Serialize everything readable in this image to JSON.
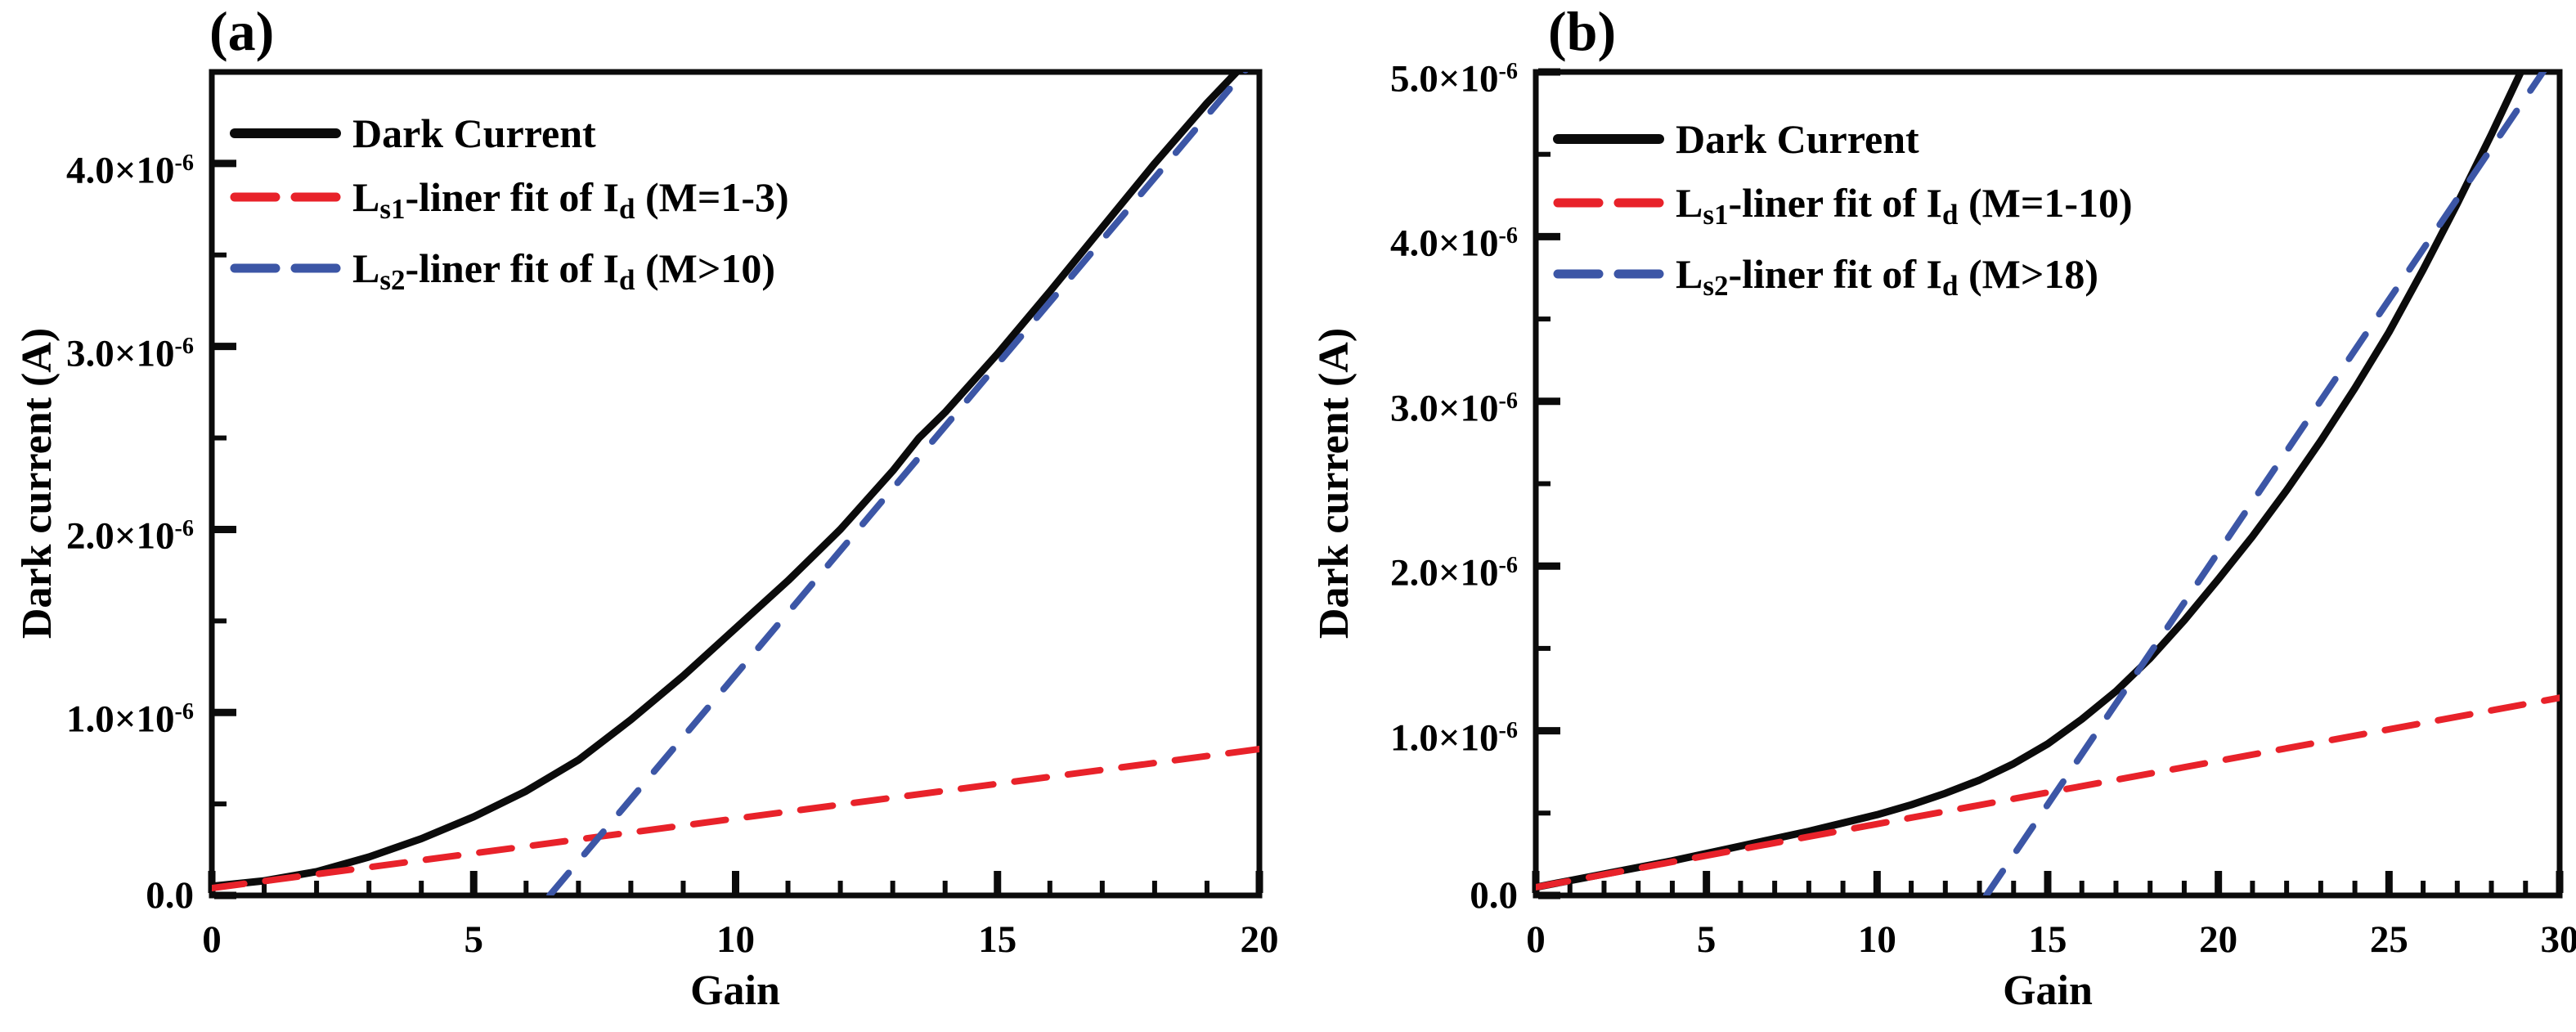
{
  "colors": {
    "black": "#0b0b0b",
    "red": "#e8222a",
    "blue": "#3c56a6"
  },
  "chart_data": [
    {
      "type": "line",
      "panel_label": "(a)",
      "xlabel": "Gain",
      "ylabel": "Dark current (A)",
      "grid": false,
      "legend_position": "top-left",
      "xlim": [
        0,
        20
      ],
      "ylim": [
        0,
        4.5
      ],
      "y_scale": 1e-06,
      "x_minor_step": 1,
      "y_minor_step": 0.5,
      "x_major_ticks": [
        0,
        5,
        10,
        15,
        20
      ],
      "x_tick_labels": [
        "0",
        "5",
        "10",
        "15",
        "20"
      ],
      "y_major_ticks": [
        {
          "v": 0,
          "base": "0.0",
          "exp": ""
        },
        {
          "v": 1,
          "base": "1.0×10",
          "exp": "-6"
        },
        {
          "v": 2,
          "base": "2.0×10",
          "exp": "-6"
        },
        {
          "v": 3,
          "base": "3.0×10",
          "exp": "-6"
        },
        {
          "v": 4,
          "base": "4.0×10",
          "exp": "-6"
        }
      ],
      "series": [
        {
          "name": "Dark Current",
          "color_key": "black",
          "style": "solid",
          "label_parts": [
            [
              "t",
              "Dark Current"
            ]
          ],
          "points": [
            [
              0,
              0.05
            ],
            [
              1,
              0.08
            ],
            [
              2,
              0.13
            ],
            [
              3,
              0.21
            ],
            [
              4,
              0.31
            ],
            [
              5,
              0.43
            ],
            [
              6,
              0.57
            ],
            [
              7,
              0.74
            ],
            [
              8,
              0.96
            ],
            [
              9,
              1.2
            ],
            [
              10,
              1.46
            ],
            [
              11,
              1.72
            ],
            [
              12,
              2.0
            ],
            [
              13,
              2.32
            ],
            [
              13.5,
              2.5
            ],
            [
              14,
              2.64
            ],
            [
              15,
              2.96
            ],
            [
              16,
              3.3
            ],
            [
              17,
              3.65
            ],
            [
              18,
              4.0
            ],
            [
              19,
              4.33
            ],
            [
              19.9,
              4.6
            ]
          ]
        },
        {
          "name": "Ls1-liner fit of Id (M=1-3)",
          "color_key": "red",
          "style": "dashed",
          "label_parts": [
            [
              "t",
              "L"
            ],
            [
              "s",
              "s1"
            ],
            [
              "t",
              "-liner fit of I"
            ],
            [
              "s",
              "d"
            ],
            [
              "t",
              " (M=1-3)"
            ]
          ],
          "points": [
            [
              0,
              0.04
            ],
            [
              20,
              0.8
            ]
          ]
        },
        {
          "name": "Ls2-liner fit of Id (M>10)",
          "color_key": "blue",
          "style": "dashed",
          "label_parts": [
            [
              "t",
              "L"
            ],
            [
              "s",
              "s2"
            ],
            [
              "t",
              "-liner fit of I"
            ],
            [
              "s",
              "d"
            ],
            [
              "t",
              " (M>10)"
            ]
          ],
          "points": [
            [
              6.45,
              0
            ],
            [
              20,
              4.6
            ]
          ]
        }
      ]
    },
    {
      "type": "line",
      "panel_label": "(b)",
      "xlabel": "Gain",
      "ylabel": "Dark current (A)",
      "grid": false,
      "legend_position": "top-left",
      "xlim": [
        0,
        30
      ],
      "ylim": [
        0,
        5.0
      ],
      "y_scale": 1e-06,
      "x_minor_step": 1,
      "y_minor_step": 0.5,
      "x_major_ticks": [
        0,
        5,
        10,
        15,
        20,
        25,
        30
      ],
      "x_tick_labels": [
        "0",
        "5",
        "10",
        "15",
        "20",
        "25",
        "30"
      ],
      "y_major_ticks": [
        {
          "v": 0,
          "base": "0.0",
          "exp": ""
        },
        {
          "v": 1,
          "base": "1.0×10",
          "exp": "-6"
        },
        {
          "v": 2,
          "base": "2.0×10",
          "exp": "-6"
        },
        {
          "v": 3,
          "base": "3.0×10",
          "exp": "-6"
        },
        {
          "v": 4,
          "base": "4.0×10",
          "exp": "-6"
        },
        {
          "v": 5,
          "base": "5.0×10",
          "exp": "-6"
        }
      ],
      "series": [
        {
          "name": "Dark Current",
          "color_key": "black",
          "style": "solid",
          "label_parts": [
            [
              "t",
              "Dark Current"
            ]
          ],
          "points": [
            [
              0,
              0.05
            ],
            [
              2,
              0.13
            ],
            [
              4,
              0.21
            ],
            [
              6,
              0.3
            ],
            [
              8,
              0.39
            ],
            [
              10,
              0.49
            ],
            [
              11,
              0.55
            ],
            [
              12,
              0.62
            ],
            [
              13,
              0.7
            ],
            [
              14,
              0.8
            ],
            [
              15,
              0.92
            ],
            [
              16,
              1.07
            ],
            [
              17,
              1.24
            ],
            [
              18,
              1.44
            ],
            [
              19,
              1.67
            ],
            [
              20,
              1.92
            ],
            [
              21,
              2.18
            ],
            [
              22,
              2.46
            ],
            [
              23,
              2.76
            ],
            [
              24,
              3.08
            ],
            [
              25,
              3.42
            ],
            [
              26,
              3.8
            ],
            [
              27,
              4.2
            ],
            [
              28,
              4.62
            ],
            [
              29,
              5.06
            ],
            [
              29.4,
              5.25
            ]
          ]
        },
        {
          "name": "Ls1-liner fit of Id (M=1-10)",
          "color_key": "red",
          "style": "dashed",
          "label_parts": [
            [
              "t",
              "L"
            ],
            [
              "s",
              "s1"
            ],
            [
              "t",
              "-liner fit of I"
            ],
            [
              "s",
              "d"
            ],
            [
              "t",
              " (M=1-10)"
            ]
          ],
          "points": [
            [
              0,
              0.05
            ],
            [
              30,
              1.2
            ]
          ]
        },
        {
          "name": "Ls2-liner fit of Id (M>18)",
          "color_key": "blue",
          "style": "dashed",
          "label_parts": [
            [
              "t",
              "L"
            ],
            [
              "s",
              "s2"
            ],
            [
              "t",
              "-liner fit of I"
            ],
            [
              "s",
              "d"
            ],
            [
              "t",
              " (M>18)"
            ]
          ],
          "points": [
            [
              13.2,
              0
            ],
            [
              30,
              5.15
            ]
          ]
        }
      ]
    }
  ]
}
